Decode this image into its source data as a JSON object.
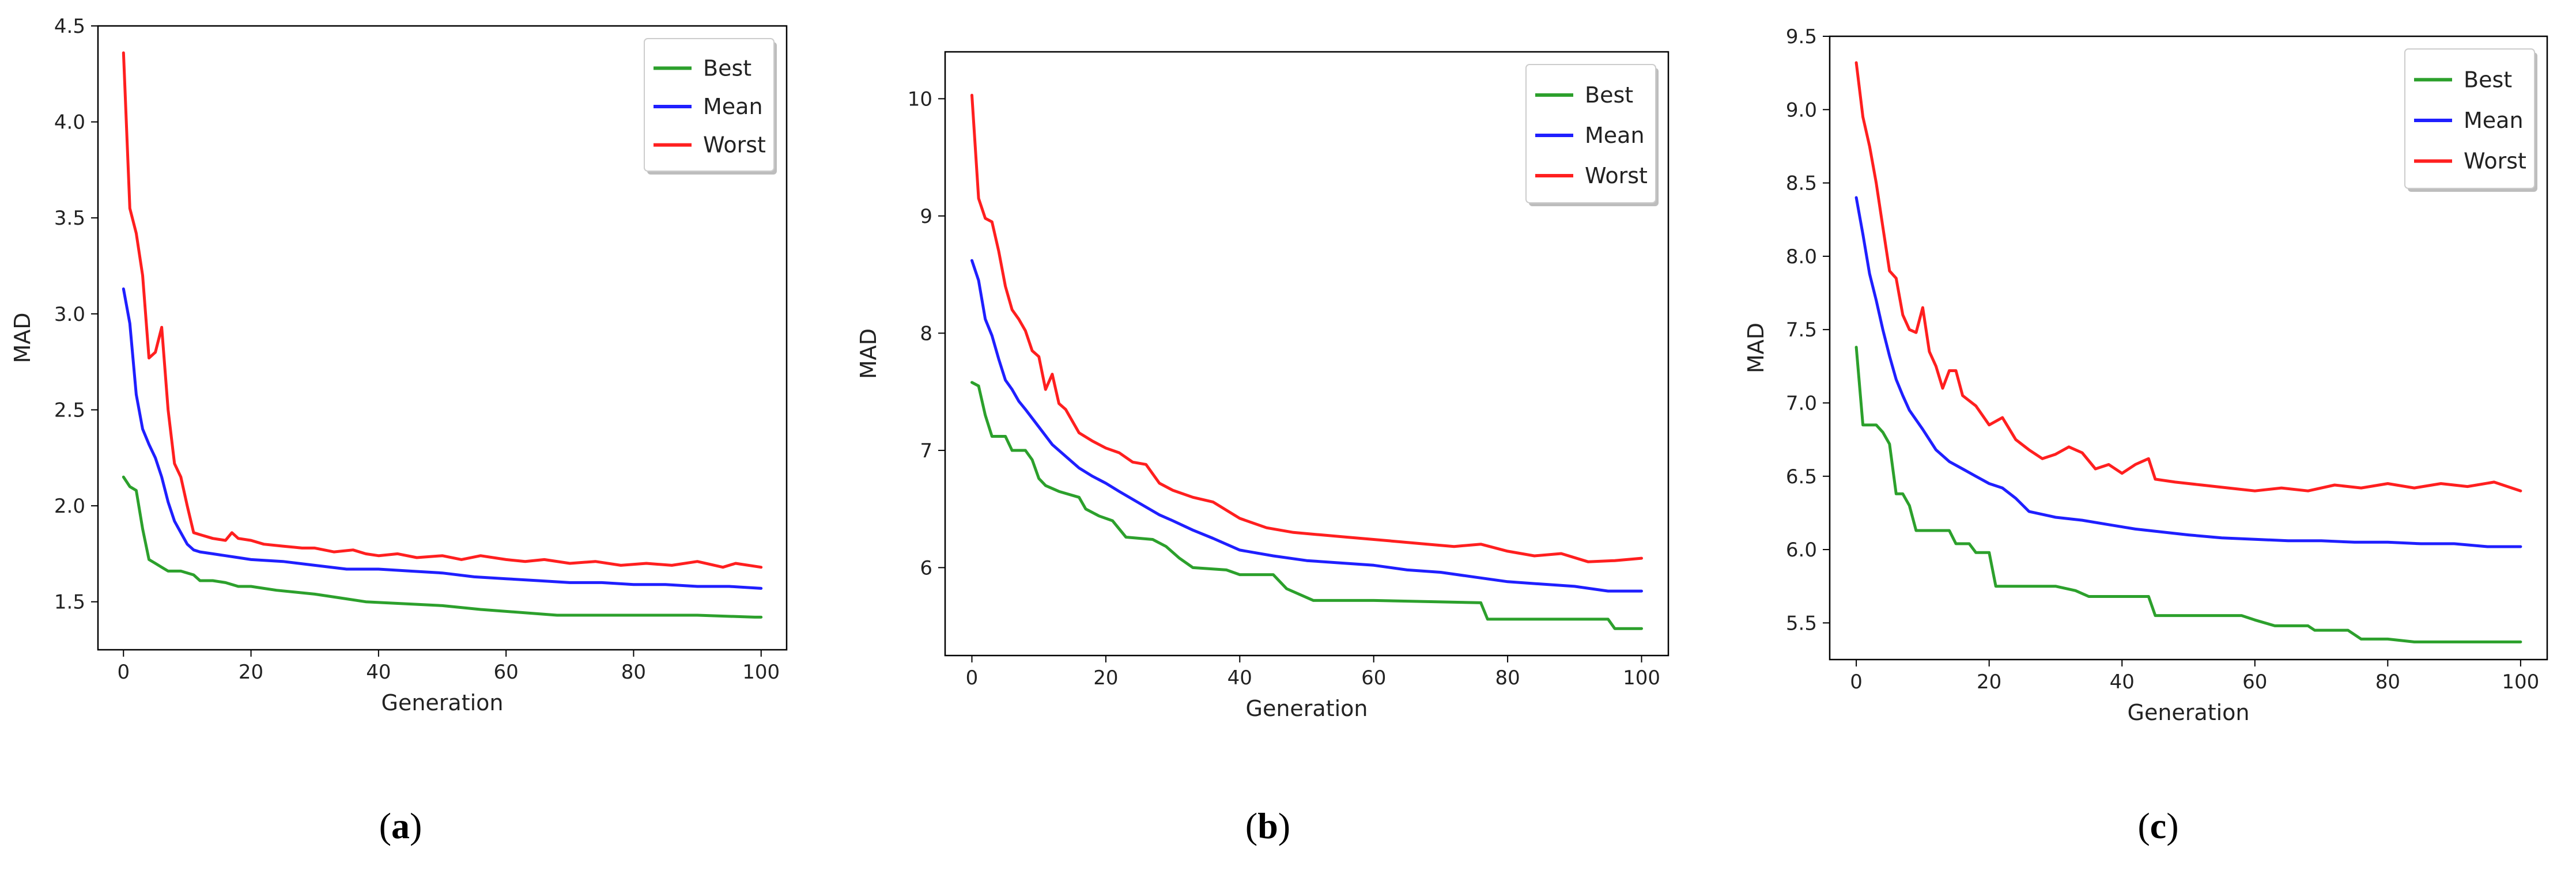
{
  "figure": {
    "captions": [
      {
        "open": "(",
        "letter": "a",
        "close": ")"
      },
      {
        "open": "(",
        "letter": "b",
        "close": ")"
      },
      {
        "open": "(",
        "letter": "c",
        "close": ")"
      }
    ]
  },
  "chart_data": [
    {
      "type": "line",
      "title": "",
      "xlabel": "Generation",
      "ylabel": "MAD",
      "xlim": [
        -4,
        104
      ],
      "ylim": [
        1.25,
        4.5
      ],
      "xticks": [
        0,
        20,
        40,
        60,
        80,
        100
      ],
      "yticks": [
        1.5,
        2.0,
        2.5,
        3.0,
        3.5,
        4.0,
        4.5
      ],
      "ytick_labels": [
        "1.5",
        "2.0",
        "2.5",
        "3.0",
        "3.5",
        "4.0",
        "4.5"
      ],
      "legend_position": "top-right",
      "series": [
        {
          "name": "Best",
          "color": "#2ca02c",
          "x": [
            0,
            1,
            2,
            3,
            4,
            5,
            6,
            7,
            9,
            11,
            12,
            14,
            16,
            18,
            20,
            22,
            24,
            30,
            34,
            38,
            50,
            56,
            68,
            80,
            90,
            99,
            100
          ],
          "y": [
            2.15,
            2.1,
            2.08,
            1.88,
            1.72,
            1.7,
            1.68,
            1.66,
            1.66,
            1.64,
            1.61,
            1.61,
            1.6,
            1.58,
            1.58,
            1.57,
            1.56,
            1.54,
            1.52,
            1.5,
            1.48,
            1.46,
            1.43,
            1.43,
            1.43,
            1.42,
            1.42
          ]
        },
        {
          "name": "Mean",
          "color": "#1f1fff",
          "x": [
            0,
            1,
            2,
            3,
            4,
            5,
            6,
            7,
            8,
            9,
            10,
            11,
            12,
            14,
            16,
            18,
            20,
            25,
            30,
            35,
            40,
            45,
            50,
            55,
            60,
            65,
            70,
            75,
            80,
            85,
            90,
            95,
            100
          ],
          "y": [
            3.13,
            2.95,
            2.58,
            2.4,
            2.32,
            2.25,
            2.15,
            2.02,
            1.92,
            1.86,
            1.8,
            1.77,
            1.76,
            1.75,
            1.74,
            1.73,
            1.72,
            1.71,
            1.69,
            1.67,
            1.67,
            1.66,
            1.65,
            1.63,
            1.62,
            1.61,
            1.6,
            1.6,
            1.59,
            1.59,
            1.58,
            1.58,
            1.57
          ]
        },
        {
          "name": "Worst",
          "color": "#ff1f1f",
          "x": [
            0,
            1,
            2,
            3,
            4,
            5,
            6,
            7,
            8,
            9,
            10,
            11,
            12,
            14,
            16,
            17,
            18,
            20,
            22,
            25,
            28,
            30,
            33,
            36,
            38,
            40,
            43,
            46,
            50,
            53,
            56,
            60,
            63,
            66,
            70,
            74,
            78,
            82,
            86,
            90,
            94,
            96,
            100
          ],
          "y": [
            4.36,
            3.55,
            3.42,
            3.2,
            2.77,
            2.8,
            2.93,
            2.5,
            2.22,
            2.15,
            2.0,
            1.86,
            1.85,
            1.83,
            1.82,
            1.86,
            1.83,
            1.82,
            1.8,
            1.79,
            1.78,
            1.78,
            1.76,
            1.77,
            1.75,
            1.74,
            1.75,
            1.73,
            1.74,
            1.72,
            1.74,
            1.72,
            1.71,
            1.72,
            1.7,
            1.71,
            1.69,
            1.7,
            1.69,
            1.71,
            1.68,
            1.7,
            1.68
          ]
        }
      ]
    },
    {
      "type": "line",
      "title": "",
      "xlabel": "Generation",
      "ylabel": "MAD",
      "xlim": [
        -4,
        104
      ],
      "ylim": [
        5.25,
        10.4
      ],
      "xticks": [
        0,
        20,
        40,
        60,
        80,
        100
      ],
      "yticks": [
        6,
        7,
        8,
        9,
        10
      ],
      "ytick_labels": [
        "6",
        "7",
        "8",
        "9",
        "10"
      ],
      "legend_position": "top-right",
      "series": [
        {
          "name": "Best",
          "color": "#2ca02c",
          "x": [
            0,
            1,
            2,
            3,
            5,
            6,
            8,
            9,
            10,
            11,
            13,
            16,
            17,
            19,
            21,
            23,
            27,
            29,
            31,
            33,
            38,
            40,
            45,
            47,
            51,
            60,
            76,
            77,
            80,
            95,
            96,
            100
          ],
          "y": [
            7.58,
            7.55,
            7.3,
            7.12,
            7.12,
            7.0,
            7.0,
            6.92,
            6.76,
            6.7,
            6.65,
            6.6,
            6.5,
            6.44,
            6.4,
            6.26,
            6.24,
            6.18,
            6.08,
            6.0,
            5.98,
            5.94,
            5.94,
            5.82,
            5.72,
            5.72,
            5.7,
            5.56,
            5.56,
            5.56,
            5.48,
            5.48
          ]
        },
        {
          "name": "Mean",
          "color": "#1f1fff",
          "x": [
            0,
            1,
            2,
            3,
            4,
            5,
            6,
            7,
            8,
            10,
            12,
            14,
            16,
            18,
            20,
            22,
            25,
            28,
            30,
            33,
            36,
            40,
            45,
            50,
            55,
            60,
            65,
            70,
            75,
            80,
            85,
            90,
            95,
            100
          ],
          "y": [
            8.62,
            8.45,
            8.12,
            7.98,
            7.78,
            7.6,
            7.52,
            7.42,
            7.35,
            7.2,
            7.05,
            6.95,
            6.85,
            6.78,
            6.72,
            6.65,
            6.55,
            6.45,
            6.4,
            6.32,
            6.25,
            6.15,
            6.1,
            6.06,
            6.04,
            6.02,
            5.98,
            5.96,
            5.92,
            5.88,
            5.86,
            5.84,
            5.8,
            5.8
          ]
        },
        {
          "name": "Worst",
          "color": "#ff1f1f",
          "x": [
            0,
            1,
            2,
            3,
            4,
            5,
            6,
            7,
            8,
            9,
            10,
            11,
            12,
            13,
            14,
            16,
            18,
            20,
            22,
            24,
            26,
            28,
            30,
            33,
            36,
            40,
            44,
            48,
            52,
            56,
            60,
            64,
            68,
            72,
            76,
            80,
            84,
            88,
            92,
            96,
            100
          ],
          "y": [
            10.03,
            9.15,
            8.98,
            8.95,
            8.7,
            8.4,
            8.2,
            8.12,
            8.02,
            7.85,
            7.8,
            7.52,
            7.65,
            7.4,
            7.35,
            7.15,
            7.08,
            7.02,
            6.98,
            6.9,
            6.88,
            6.72,
            6.66,
            6.6,
            6.56,
            6.42,
            6.34,
            6.3,
            6.28,
            6.26,
            6.24,
            6.22,
            6.2,
            6.18,
            6.2,
            6.14,
            6.1,
            6.12,
            6.05,
            6.06,
            6.08
          ]
        }
      ]
    },
    {
      "type": "line",
      "title": "",
      "xlabel": "Generation",
      "ylabel": "MAD",
      "xlim": [
        -4,
        104
      ],
      "ylim": [
        5.25,
        9.5
      ],
      "xticks": [
        0,
        20,
        40,
        60,
        80,
        100
      ],
      "yticks": [
        5.5,
        6.0,
        6.5,
        7.0,
        7.5,
        8.0,
        8.5,
        9.0,
        9.5
      ],
      "ytick_labels": [
        "5.5",
        "6.0",
        "6.5",
        "7.0",
        "7.5",
        "8.0",
        "8.5",
        "9.0",
        "9.5"
      ],
      "legend_position": "top-right",
      "series": [
        {
          "name": "Best",
          "color": "#2ca02c",
          "x": [
            0,
            1,
            3,
            4,
            5,
            6,
            7,
            8,
            9,
            10,
            14,
            15,
            17,
            18,
            20,
            21,
            30,
            33,
            35,
            44,
            45,
            58,
            60,
            63,
            68,
            69,
            74,
            76,
            80,
            84,
            86,
            100
          ],
          "y": [
            7.38,
            6.85,
            6.85,
            6.8,
            6.72,
            6.38,
            6.38,
            6.3,
            6.13,
            6.13,
            6.13,
            6.04,
            6.04,
            5.98,
            5.98,
            5.75,
            5.75,
            5.72,
            5.68,
            5.68,
            5.55,
            5.55,
            5.52,
            5.48,
            5.48,
            5.45,
            5.45,
            5.39,
            5.39,
            5.37,
            5.37,
            5.37
          ]
        },
        {
          "name": "Mean",
          "color": "#1f1fff",
          "x": [
            0,
            1,
            2,
            3,
            4,
            5,
            6,
            7,
            8,
            10,
            12,
            14,
            16,
            18,
            20,
            22,
            24,
            26,
            30,
            34,
            38,
            42,
            46,
            50,
            55,
            60,
            65,
            70,
            75,
            80,
            85,
            90,
            95,
            100
          ],
          "y": [
            8.4,
            8.15,
            7.88,
            7.7,
            7.5,
            7.32,
            7.16,
            7.05,
            6.95,
            6.82,
            6.68,
            6.6,
            6.55,
            6.5,
            6.45,
            6.42,
            6.35,
            6.26,
            6.22,
            6.2,
            6.17,
            6.14,
            6.12,
            6.1,
            6.08,
            6.07,
            6.06,
            6.06,
            6.05,
            6.05,
            6.04,
            6.04,
            6.02,
            6.02
          ]
        },
        {
          "name": "Worst",
          "color": "#ff1f1f",
          "x": [
            0,
            1,
            2,
            3,
            4,
            5,
            6,
            7,
            8,
            9,
            10,
            11,
            12,
            13,
            14,
            15,
            16,
            18,
            20,
            22,
            24,
            26,
            28,
            30,
            32,
            34,
            36,
            38,
            40,
            42,
            44,
            45,
            48,
            52,
            56,
            60,
            64,
            68,
            72,
            76,
            80,
            84,
            88,
            92,
            96,
            100
          ],
          "y": [
            9.32,
            8.95,
            8.75,
            8.5,
            8.2,
            7.9,
            7.85,
            7.6,
            7.5,
            7.48,
            7.65,
            7.35,
            7.25,
            7.1,
            7.22,
            7.22,
            7.05,
            6.98,
            6.85,
            6.9,
            6.75,
            6.68,
            6.62,
            6.65,
            6.7,
            6.66,
            6.55,
            6.58,
            6.52,
            6.58,
            6.62,
            6.48,
            6.46,
            6.44,
            6.42,
            6.4,
            6.42,
            6.4,
            6.44,
            6.42,
            6.45,
            6.42,
            6.45,
            6.43,
            6.46,
            6.4
          ]
        }
      ]
    }
  ]
}
